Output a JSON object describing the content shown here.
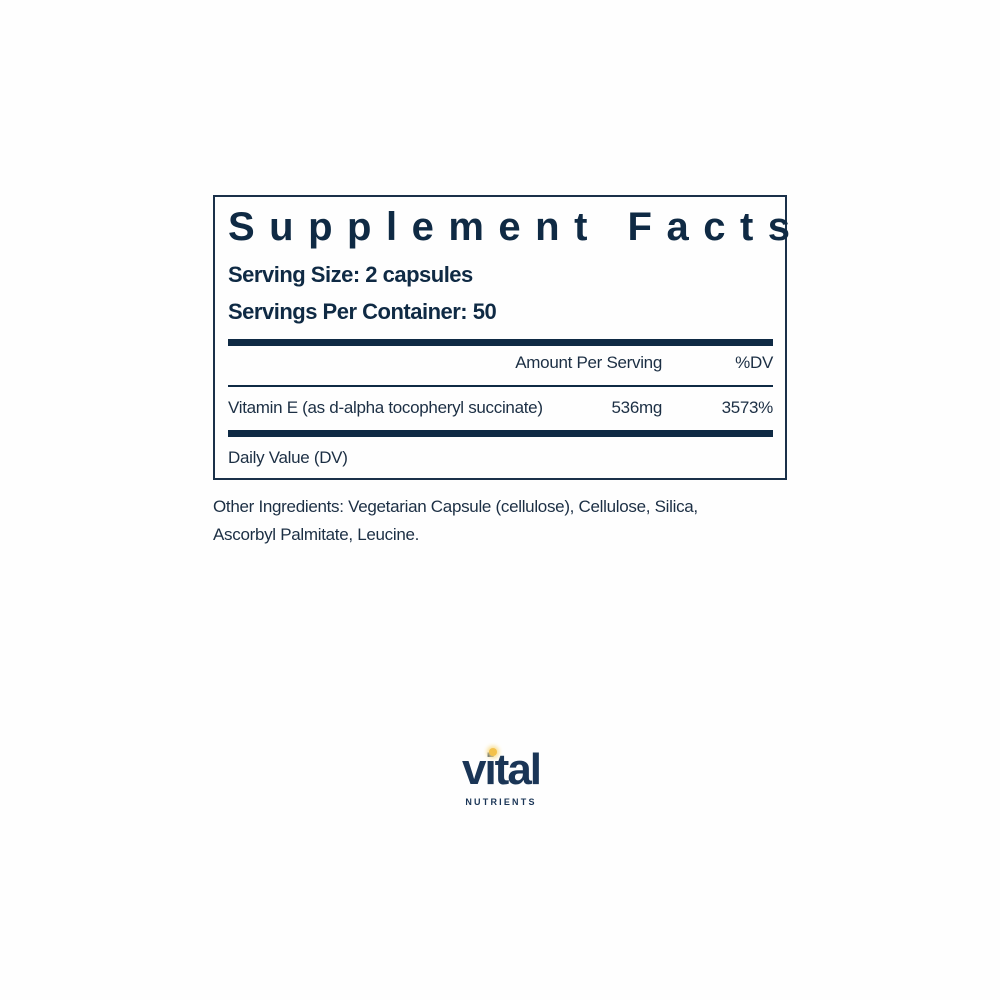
{
  "label": {
    "title": "Supplement Facts",
    "serving_size": "Serving Size: 2 capsules",
    "servings_per_container": "Servings Per Container: 50",
    "columns": {
      "amount": "Amount Per Serving",
      "dv": "%DV"
    },
    "rows": [
      {
        "name": "Vitamin E (as d-alpha tocopheryl succinate)",
        "amount": "536mg",
        "dv": "3573%"
      }
    ],
    "footnote": "Daily Value (DV)"
  },
  "other_ingredients": {
    "line1": "Other Ingredients: Vegetarian Capsule (cellulose), Cellulose, Silica,",
    "line2": "Ascorbyl Palmitate, Leucine."
  },
  "brand": {
    "name": "vital",
    "sub": "NUTRIENTS",
    "color": "#1a3556",
    "accent": "#f3c14b"
  },
  "colors": {
    "ink": "#0f2a44"
  }
}
